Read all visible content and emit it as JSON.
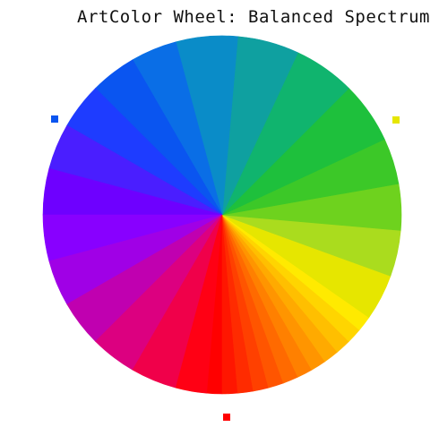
{
  "chart_data": {
    "type": "pie",
    "title": "ArtColor Wheel: Balanced Spectrum",
    "slices": [
      {
        "hue_deg": 0,
        "color": "#ff0000"
      },
      {
        "hue_deg": 5,
        "color": "#ff1600"
      },
      {
        "hue_deg": 10,
        "color": "#ff2b00"
      },
      {
        "hue_deg": 15,
        "color": "#ff4000"
      },
      {
        "hue_deg": 20,
        "color": "#ff5500"
      },
      {
        "hue_deg": 25,
        "color": "#ff6a00"
      },
      {
        "hue_deg": 30,
        "color": "#ff8000"
      },
      {
        "hue_deg": 35,
        "color": "#ff9500"
      },
      {
        "hue_deg": 40,
        "color": "#ffaa00"
      },
      {
        "hue_deg": 45,
        "color": "#ffbf00"
      },
      {
        "hue_deg": 50,
        "color": "#ffd500"
      },
      {
        "hue_deg": 55,
        "color": "#ffea00"
      },
      {
        "hue_deg": 60,
        "color": "#e6e600"
      },
      {
        "hue_deg": 75,
        "color": "#aadc1e"
      },
      {
        "hue_deg": 90,
        "color": "#6ed21e"
      },
      {
        "hue_deg": 105,
        "color": "#3cc828"
      },
      {
        "hue_deg": 120,
        "color": "#1ec03c"
      },
      {
        "hue_deg": 140,
        "color": "#10b46e"
      },
      {
        "hue_deg": 160,
        "color": "#0fa0a0"
      },
      {
        "hue_deg": 180,
        "color": "#0a8cc8"
      },
      {
        "hue_deg": 200,
        "color": "#0a6ee6"
      },
      {
        "hue_deg": 215,
        "color": "#0a55f0"
      },
      {
        "hue_deg": 230,
        "color": "#1e3cff"
      },
      {
        "hue_deg": 245,
        "color": "#4a1eff"
      },
      {
        "hue_deg": 260,
        "color": "#6e00ff"
      },
      {
        "hue_deg": 275,
        "color": "#8800ff"
      },
      {
        "hue_deg": 290,
        "color": "#a000e6"
      },
      {
        "hue_deg": 305,
        "color": "#c000b0"
      },
      {
        "hue_deg": 320,
        "color": "#dc0080"
      },
      {
        "hue_deg": 335,
        "color": "#f0004a"
      },
      {
        "hue_deg": 350,
        "color": "#ff0014"
      }
    ],
    "markers": [
      {
        "name": "primary-red",
        "color": "#ff0000",
        "position": "bottom"
      },
      {
        "name": "primary-yellow",
        "color": "#e6e600",
        "position": "top-right"
      },
      {
        "name": "primary-blue",
        "color": "#0a55f0",
        "position": "top-left"
      }
    ],
    "legend": "none"
  }
}
